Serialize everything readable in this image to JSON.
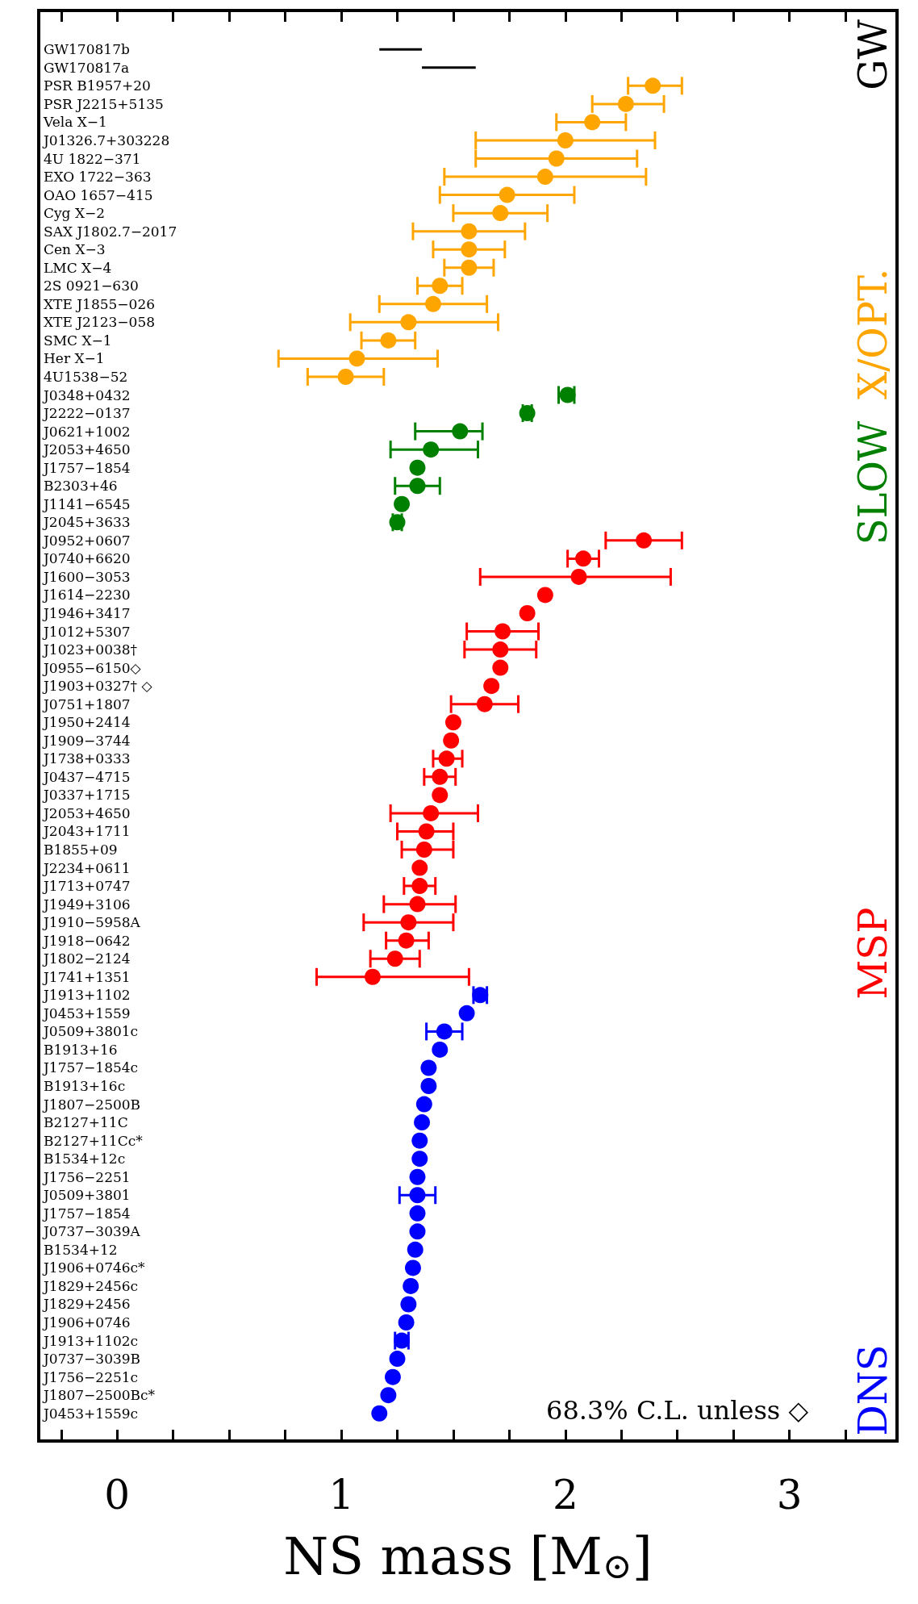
{
  "chart_data": {
    "type": "scatter",
    "orientation": "horizontal",
    "xlabel": "NS mass [M$_{⊙}$]",
    "annotations": [
      "68.3% C.L. unless ◇"
    ],
    "categories": [
      "GW170817b",
      "GW170817a",
      "PSR B1957+20",
      "PSR J2215+5135",
      "Vela X−1",
      "J01326.7+303228",
      "4U 1822−371",
      "EXO 1722−363",
      "OAO 1657−415",
      "Cyg X−2",
      "SAX J1802.7−2017",
      "Cen X−3",
      "LMC X−4",
      "2S 0921−630",
      "XTE J1855−026",
      "XTE J2123−058",
      "SMC X−1",
      "Her X−1",
      "4U1538−52",
      "J0348+0432",
      "J2222−0137",
      "J0621+1002",
      "J2053+4650",
      "J1757−1854",
      "B2303+46",
      "J1141−6545",
      "J2045+3633",
      "J0952+0607",
      "J0740+6620",
      "J1600−3053",
      "J1614−2230",
      "J1946+3417",
      "J1012+5307",
      "J1023+0038†",
      "J0955−6150◇",
      "J1903+0327† ◇",
      "J0751+1807",
      "J1950+2414",
      "J1909−3744",
      "J1738+0333",
      "J0437−4715",
      "J0337+1715",
      "J2053+4650",
      "J2043+1711",
      "B1855+09",
      "J2234+0611",
      "J1713+0747",
      "J1949+3106",
      "J1910−5958A",
      "J1918−0642",
      "J1802−2124",
      "J1741+1351",
      "J1913+1102",
      "J0453+1559",
      "J0509+3801c",
      "B1913+16",
      "J1757−1854c",
      "B1913+16c",
      "J1807−2500B",
      "B2127+11C",
      "B2127+11Cc*",
      "B1534+12c",
      "J1756−2251",
      "J0509+3801",
      "J1757−1854",
      "J0737−3039A",
      "B1534+12",
      "J1906+0746c*",
      "J1829+2456c",
      "J1829+2456",
      "J1906+0746",
      "J1913+1102c",
      "J0737−3039B",
      "J1756−2251c",
      "J1807−2500Bc*",
      "J0453+1559c"
    ],
    "series": [
      {
        "name": "GW",
        "color": "#000000",
        "type": "bar",
        "base": [
          1.17,
          1.36,
          null,
          null,
          null,
          null,
          null,
          null,
          null,
          null,
          null,
          null,
          null,
          null,
          null,
          null,
          null,
          null,
          null,
          null,
          null,
          null,
          null,
          null,
          null,
          null,
          null,
          null,
          null,
          null,
          null,
          null,
          null,
          null,
          null,
          null,
          null,
          null,
          null,
          null,
          null,
          null,
          null,
          null,
          null,
          null,
          null,
          null,
          null,
          null,
          null,
          null,
          null,
          null,
          null,
          null,
          null,
          null,
          null,
          null,
          null,
          null,
          null,
          null,
          null,
          null,
          null,
          null,
          null,
          null,
          null,
          null,
          null,
          null,
          null,
          null
        ],
        "values": [
          0.19,
          0.24,
          null,
          null,
          null,
          null,
          null,
          null,
          null,
          null,
          null,
          null,
          null,
          null,
          null,
          null,
          null,
          null,
          null,
          null,
          null,
          null,
          null,
          null,
          null,
          null,
          null,
          null,
          null,
          null,
          null,
          null,
          null,
          null,
          null,
          null,
          null,
          null,
          null,
          null,
          null,
          null,
          null,
          null,
          null,
          null,
          null,
          null,
          null,
          null,
          null,
          null,
          null,
          null,
          null,
          null,
          null,
          null,
          null,
          null,
          null,
          null,
          null,
          null,
          null,
          null,
          null,
          null,
          null,
          null,
          null,
          null,
          null,
          null,
          null,
          null
        ],
        "errors": [
          null,
          null,
          null,
          null,
          null,
          null,
          null,
          null,
          null,
          null,
          null,
          null,
          null,
          null,
          null,
          null,
          null,
          null,
          null,
          null,
          null,
          null,
          null,
          null,
          null,
          null,
          null,
          null,
          null,
          null,
          null,
          null,
          null,
          null,
          null,
          null,
          null,
          null,
          null,
          null,
          null,
          null,
          null,
          null,
          null,
          null,
          null,
          null,
          null,
          null,
          null,
          null,
          null,
          null,
          null,
          null,
          null,
          null,
          null,
          null,
          null,
          null,
          null,
          null,
          null,
          null,
          null,
          null,
          null,
          null,
          null,
          null,
          null,
          null,
          null,
          null
        ]
      },
      {
        "name": "X/OPT.",
        "color": "#ffa500",
        "values": [
          null,
          null,
          2.39,
          2.27,
          2.12,
          2.0,
          1.96,
          1.91,
          1.74,
          1.71,
          1.57,
          1.57,
          1.57,
          1.44,
          1.41,
          1.3,
          1.21,
          1.07,
          1.02,
          null,
          null,
          null,
          null,
          null,
          null,
          null,
          null,
          null,
          null,
          null,
          null,
          null,
          null,
          null,
          null,
          null,
          null,
          null,
          null,
          null,
          null,
          null,
          null,
          null,
          null,
          null,
          null,
          null,
          null,
          null,
          null,
          null,
          null,
          null,
          null,
          null,
          null,
          null,
          null,
          null,
          null,
          null,
          null,
          null,
          null,
          null,
          null,
          null,
          null,
          null,
          null,
          null,
          null,
          null,
          null,
          null
        ],
        "errors": [
          null,
          null,
          [
            2.28,
            2.52
          ],
          [
            2.12,
            2.44
          ],
          [
            1.96,
            2.27
          ],
          [
            1.6,
            2.4
          ],
          [
            1.6,
            2.32
          ],
          [
            1.46,
            2.36
          ],
          [
            1.44,
            2.04
          ],
          [
            1.5,
            1.92
          ],
          [
            1.32,
            1.82
          ],
          [
            1.41,
            1.73
          ],
          [
            1.46,
            1.68
          ],
          [
            1.34,
            1.54
          ],
          [
            1.17,
            1.65
          ],
          [
            1.04,
            1.7
          ],
          [
            1.09,
            1.33
          ],
          [
            0.72,
            1.43
          ],
          [
            0.85,
            1.19
          ],
          null,
          null,
          null,
          null,
          null,
          null,
          null,
          null,
          null,
          null,
          null,
          null,
          null,
          null,
          null,
          null,
          null,
          null,
          null,
          null,
          null,
          null,
          null,
          null,
          null,
          null,
          null,
          null,
          null,
          null,
          null,
          null,
          null,
          null,
          null,
          null,
          null,
          null,
          null,
          null,
          null,
          null,
          null,
          null,
          null,
          null,
          null,
          null,
          null,
          null,
          null,
          null,
          null,
          null,
          null,
          null,
          null
        ]
      },
      {
        "name": "SLOW",
        "color": "#008000",
        "values": [
          null,
          null,
          null,
          null,
          null,
          null,
          null,
          null,
          null,
          null,
          null,
          null,
          null,
          null,
          null,
          null,
          null,
          null,
          null,
          2.01,
          1.83,
          1.53,
          1.4,
          1.34,
          1.34,
          1.27,
          1.25,
          null,
          null,
          null,
          null,
          null,
          null,
          null,
          null,
          null,
          null,
          null,
          null,
          null,
          null,
          null,
          null,
          null,
          null,
          null,
          null,
          null,
          null,
          null,
          null,
          null,
          null,
          null,
          null,
          null,
          null,
          null,
          null,
          null,
          null,
          null,
          null,
          null,
          null,
          null,
          null,
          null,
          null,
          null,
          null,
          null,
          null,
          null,
          null,
          null
        ],
        "errors": [
          null,
          null,
          null,
          null,
          null,
          null,
          null,
          null,
          null,
          null,
          null,
          null,
          null,
          null,
          null,
          null,
          null,
          null,
          null,
          [
            1.97,
            2.04
          ],
          0.02,
          [
            1.33,
            1.63
          ],
          [
            1.22,
            1.61
          ],
          null,
          [
            1.24,
            1.44
          ],
          null,
          0.02,
          null,
          null,
          null,
          null,
          null,
          null,
          null,
          null,
          null,
          null,
          null,
          null,
          null,
          null,
          null,
          null,
          null,
          null,
          null,
          null,
          null,
          null,
          null,
          null,
          null,
          null,
          null,
          null,
          null,
          null,
          null,
          null,
          null,
          null,
          null,
          null,
          null,
          null,
          null,
          null,
          null,
          null,
          null,
          null,
          null,
          null,
          null,
          null,
          null
        ]
      },
      {
        "name": "MSP",
        "color": "#ff0000",
        "values": [
          null,
          null,
          null,
          null,
          null,
          null,
          null,
          null,
          null,
          null,
          null,
          null,
          null,
          null,
          null,
          null,
          null,
          null,
          null,
          null,
          null,
          null,
          null,
          null,
          null,
          null,
          null,
          2.35,
          2.08,
          2.06,
          1.91,
          1.83,
          1.72,
          1.71,
          1.71,
          1.67,
          1.64,
          1.5,
          1.49,
          1.47,
          1.44,
          1.44,
          1.4,
          1.38,
          1.37,
          1.35,
          1.35,
          1.34,
          1.3,
          1.29,
          1.24,
          1.14,
          null,
          null,
          null,
          null,
          null,
          null,
          null,
          null,
          null,
          null,
          null,
          null,
          null,
          null,
          null,
          null,
          null,
          null,
          null,
          null,
          null,
          null,
          null,
          null
        ],
        "errors": [
          null,
          null,
          null,
          null,
          null,
          null,
          null,
          null,
          null,
          null,
          null,
          null,
          null,
          null,
          null,
          null,
          null,
          null,
          null,
          null,
          null,
          null,
          null,
          null,
          null,
          null,
          null,
          [
            2.18,
            2.52
          ],
          [
            2.01,
            2.15
          ],
          [
            1.62,
            2.47
          ],
          null,
          null,
          [
            1.56,
            1.88
          ],
          [
            1.55,
            1.87
          ],
          null,
          null,
          [
            1.49,
            1.79
          ],
          null,
          null,
          [
            1.41,
            1.54
          ],
          [
            1.37,
            1.51
          ],
          null,
          [
            1.22,
            1.61
          ],
          [
            1.25,
            1.5
          ],
          [
            1.27,
            1.5
          ],
          null,
          [
            1.28,
            1.42
          ],
          [
            1.19,
            1.51
          ],
          [
            1.1,
            1.5
          ],
          [
            1.2,
            1.39
          ],
          [
            1.13,
            1.35
          ],
          [
            0.89,
            1.57
          ],
          null,
          null,
          null,
          null,
          null,
          null,
          null,
          null,
          null,
          null,
          null,
          null,
          null,
          null,
          null,
          null,
          null,
          null,
          null,
          null,
          null,
          null,
          null,
          null
        ]
      },
      {
        "name": "DNS",
        "color": "#0000ff",
        "values": [
          null,
          null,
          null,
          null,
          null,
          null,
          null,
          null,
          null,
          null,
          null,
          null,
          null,
          null,
          null,
          null,
          null,
          null,
          null,
          null,
          null,
          null,
          null,
          null,
          null,
          null,
          null,
          null,
          null,
          null,
          null,
          null,
          null,
          null,
          null,
          null,
          null,
          null,
          null,
          null,
          null,
          null,
          null,
          null,
          null,
          null,
          null,
          null,
          null,
          null,
          null,
          null,
          1.62,
          1.56,
          1.46,
          1.44,
          1.39,
          1.39,
          1.37,
          1.36,
          1.35,
          1.35,
          1.34,
          1.34,
          1.34,
          1.34,
          1.33,
          1.32,
          1.31,
          1.3,
          1.29,
          1.27,
          1.25,
          1.23,
          1.21,
          1.17
        ],
        "errors": [
          null,
          null,
          null,
          null,
          null,
          null,
          null,
          null,
          null,
          null,
          null,
          null,
          null,
          null,
          null,
          null,
          null,
          null,
          null,
          null,
          null,
          null,
          null,
          null,
          null,
          null,
          null,
          null,
          null,
          null,
          null,
          null,
          null,
          null,
          null,
          null,
          null,
          null,
          null,
          null,
          null,
          null,
          null,
          null,
          null,
          null,
          null,
          null,
          null,
          null,
          null,
          null,
          [
            1.59,
            1.65
          ],
          null,
          [
            1.38,
            1.54
          ],
          null,
          null,
          null,
          null,
          null,
          null,
          null,
          null,
          [
            1.26,
            1.42
          ],
          null,
          null,
          null,
          null,
          null,
          null,
          null,
          [
            1.24,
            1.3
          ],
          null,
          null,
          null,
          null
        ]
      }
    ],
    "xlim": [
      -0.35,
      3.48
    ],
    "xticks": [
      {
        "value": -0.25,
        "label": null
      },
      0,
      {
        "value": 0.25,
        "label": null
      },
      {
        "value": 0.5,
        "label": null
      },
      {
        "value": 0.75,
        "label": null
      },
      1,
      {
        "value": 1.25,
        "label": null
      },
      {
        "value": 1.5,
        "label": null
      },
      {
        "value": 1.75,
        "label": null
      },
      2,
      {
        "value": 2.25,
        "label": null
      },
      {
        "value": 2.5,
        "label": null
      },
      {
        "value": 2.75,
        "label": null
      },
      3,
      {
        "value": 3.25,
        "label": null
      }
    ],
    "marker": "circle",
    "legend": "right",
    "grid": false
  }
}
